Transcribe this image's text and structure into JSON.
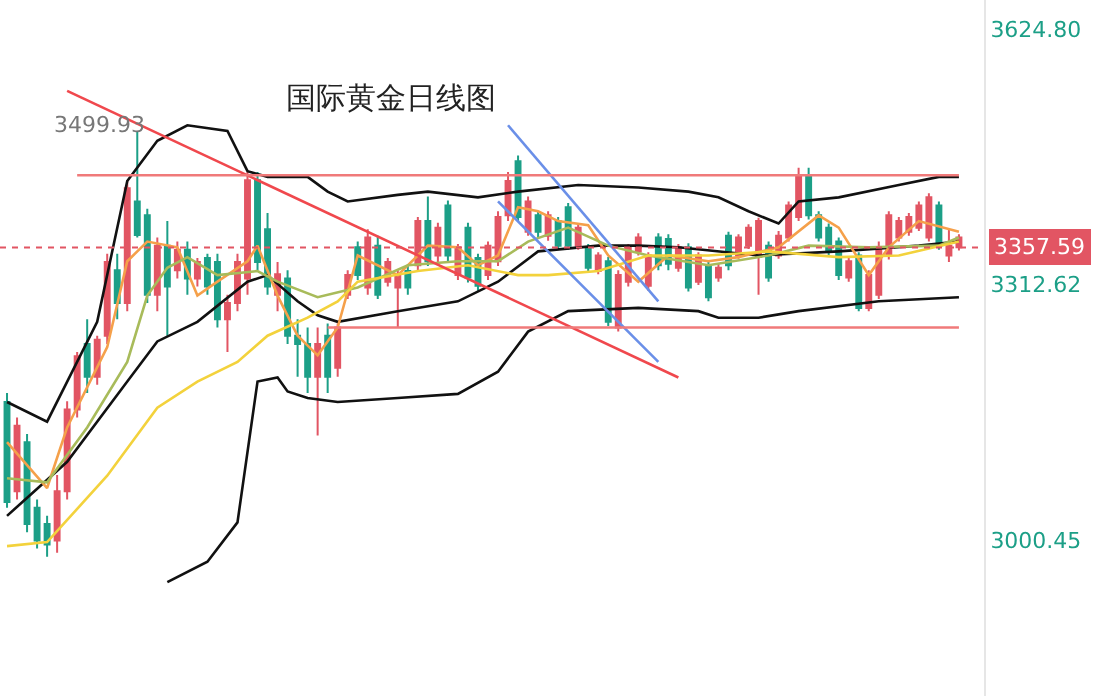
{
  "chart_data": {
    "type": "candlestick",
    "title": "国际黄金日线图",
    "categories": [
      null,
      null,
      null,
      null,
      null,
      null,
      null,
      null,
      null,
      null,
      null,
      null,
      null,
      null,
      null,
      null,
      null,
      null,
      null,
      null,
      null,
      null,
      null,
      null,
      null,
      null,
      null,
      null,
      null,
      null,
      null,
      null,
      null,
      null,
      null,
      null,
      null,
      null,
      null,
      null,
      null,
      null,
      null,
      null,
      null,
      null,
      null,
      null,
      null,
      null,
      null,
      null,
      null,
      null,
      null,
      null,
      null,
      null,
      null,
      null,
      null,
      null,
      null,
      null,
      null,
      null,
      null,
      null,
      null,
      null,
      null,
      null,
      null,
      null,
      null,
      null,
      null,
      null,
      null,
      null,
      null,
      null,
      null,
      null,
      null,
      null,
      null,
      null,
      null,
      null,
      null,
      null,
      null,
      null,
      null,
      null
    ],
    "ohlc": [
      [
        3169,
        3180,
        3040,
        3047
      ],
      [
        3060,
        3150,
        3050,
        3140
      ],
      [
        3120,
        3130,
        3010,
        3020
      ],
      [
        3040,
        3050,
        2990,
        3000
      ],
      [
        3020,
        3030,
        2980,
        2995
      ],
      [
        3000,
        3080,
        2985,
        3060
      ],
      [
        3060,
        3170,
        3050,
        3160
      ],
      [
        3160,
        3230,
        3150,
        3225
      ],
      [
        3240,
        3270,
        3180,
        3200
      ],
      [
        3200,
        3250,
        3190,
        3245
      ],
      [
        3250,
        3350,
        3240,
        3340
      ],
      [
        3330,
        3350,
        3270,
        3290
      ],
      [
        3290,
        3440,
        3280,
        3430
      ],
      [
        3414,
        3499.93,
        3370,
        3373
      ],
      [
        3397,
        3405,
        3290,
        3300
      ],
      [
        3300,
        3370,
        3280,
        3360
      ],
      [
        3360,
        3390,
        3250,
        3310
      ],
      [
        3330,
        3365,
        3320,
        3355
      ],
      [
        3355,
        3365,
        3300,
        3320
      ],
      [
        3320,
        3345,
        3310,
        3340
      ],
      [
        3345,
        3350,
        3300,
        3310
      ],
      [
        3340,
        3350,
        3260,
        3270
      ],
      [
        3270,
        3300,
        3230,
        3290
      ],
      [
        3290,
        3350,
        3280,
        3340
      ],
      [
        3320,
        3450,
        3300,
        3440
      ],
      [
        3440,
        3450,
        3330,
        3340
      ],
      [
        3380,
        3400,
        3300,
        3310
      ],
      [
        3300,
        3340,
        3280,
        3325
      ],
      [
        3320,
        3330,
        3240,
        3250
      ],
      [
        3250,
        3270,
        3200,
        3240
      ],
      [
        3240,
        3260,
        3180,
        3200
      ],
      [
        3200,
        3260,
        3128,
        3240
      ],
      [
        3250,
        3265,
        3180,
        3200
      ],
      [
        3211,
        3265,
        3200,
        3260
      ],
      [
        3300,
        3330,
        3295,
        3324
      ],
      [
        3358,
        3365,
        3318,
        3324
      ],
      [
        3309,
        3380,
        3300,
        3370
      ],
      [
        3360,
        3372,
        3295,
        3300
      ],
      [
        3316,
        3345,
        3310,
        3340
      ],
      [
        3309,
        3330,
        3260,
        3324
      ],
      [
        3329,
        3335,
        3300,
        3309
      ],
      [
        3336,
        3395,
        3330,
        3390
      ],
      [
        3390,
        3420,
        3335,
        3341
      ],
      [
        3348,
        3388,
        3340,
        3382
      ],
      [
        3409,
        3415,
        3340,
        3348
      ],
      [
        3324,
        3362,
        3318,
        3358
      ],
      [
        3382,
        3388,
        3315,
        3321
      ],
      [
        3345,
        3350,
        3305,
        3311
      ],
      [
        3324,
        3365,
        3318,
        3360
      ],
      [
        3341,
        3402,
        3335,
        3395
      ],
      [
        3397,
        3450,
        3390,
        3439
      ],
      [
        3463,
        3470,
        3390,
        3395
      ],
      [
        3377,
        3420,
        3372,
        3414
      ],
      [
        3397,
        3402,
        3370,
        3377
      ],
      [
        3372,
        3402,
        3366,
        3397
      ],
      [
        3390,
        3395,
        3355,
        3360
      ],
      [
        3407,
        3412,
        3355,
        3360
      ],
      [
        3360,
        3386,
        3355,
        3382
      ],
      [
        3358,
        3362,
        3328,
        3333
      ],
      [
        3329,
        3352,
        3325,
        3348
      ],
      [
        3341,
        3346,
        3262,
        3267
      ],
      [
        3260,
        3330,
        3255,
        3324
      ],
      [
        3316,
        3362,
        3310,
        3358
      ],
      [
        3353,
        3375,
        3348,
        3370
      ],
      [
        3311,
        3352,
        3305,
        3348
      ],
      [
        3370,
        3375,
        3330,
        3336
      ],
      [
        3368,
        3374,
        3330,
        3338
      ],
      [
        3333,
        3362,
        3328,
        3358
      ],
      [
        3358,
        3363,
        3304,
        3309
      ],
      [
        3316,
        3352,
        3312,
        3348
      ],
      [
        3336,
        3340,
        3292,
        3297
      ],
      [
        3321,
        3338,
        3316,
        3333
      ],
      [
        3372,
        3377,
        3330,
        3336
      ],
      [
        3348,
        3374,
        3344,
        3370
      ],
      [
        3360,
        3386,
        3356,
        3382
      ],
      [
        3346,
        3394,
        3300,
        3390
      ],
      [
        3360,
        3365,
        3316,
        3321
      ],
      [
        3348,
        3378,
        3344,
        3372
      ],
      [
        3370,
        3414,
        3365,
        3409
      ],
      [
        3395,
        3455,
        3390,
        3446
      ],
      [
        3446,
        3455,
        3392,
        3397
      ],
      [
        3397,
        3402,
        3365,
        3370
      ],
      [
        3382,
        3387,
        3348,
        3353
      ],
      [
        3365,
        3370,
        3318,
        3324
      ],
      [
        3321,
        3346,
        3316,
        3341
      ],
      [
        3348,
        3352,
        3280,
        3284
      ],
      [
        3284,
        3330,
        3280,
        3324
      ],
      [
        3300,
        3365,
        3295,
        3358
      ],
      [
        3348,
        3402,
        3343,
        3397
      ],
      [
        3370,
        3395,
        3365,
        3390
      ],
      [
        3377,
        3400,
        3372,
        3395
      ],
      [
        3382,
        3414,
        3378,
        3409
      ],
      [
        3370,
        3424,
        3365,
        3419
      ],
      [
        3409,
        3414,
        3355,
        3360
      ],
      [
        3348,
        3380,
        3340,
        3360
      ],
      [
        3358,
        3374,
        3354,
        3370
      ]
    ],
    "colors": [
      "#1c9f87",
      "#e25563",
      "#1c9f87",
      "#1c9f87",
      "#1c9f87",
      "#e25563",
      "#e25563",
      "#e25563",
      "#1c9f87",
      "#e25563",
      "#e25563",
      "#1c9f87",
      "#e25563",
      "#1c9f87",
      "#1c9f87",
      "#e25563",
      "#1c9f87",
      "#e25563",
      "#1c9f87",
      "#e25563",
      "#1c9f87",
      "#1c9f87",
      "#e25563",
      "#e25563",
      "#e25563",
      "#1c9f87",
      "#1c9f87",
      "#e25563",
      "#1c9f87",
      "#1c9f87",
      "#1c9f87",
      "#e25563",
      "#1c9f87",
      "#e25563",
      "#e25563",
      "#1c9f87",
      "#e25563",
      "#1c9f87",
      "#e25563",
      "#e25563",
      "#1c9f87",
      "#e25563",
      "#1c9f87",
      "#e25563",
      "#1c9f87",
      "#e25563",
      "#1c9f87",
      "#1c9f87",
      "#e25563",
      "#e25563",
      "#e25563",
      "#1c9f87",
      "#e25563",
      "#1c9f87",
      "#e25563",
      "#1c9f87",
      "#1c9f87",
      "#e25563",
      "#1c9f87",
      "#e25563",
      "#1c9f87",
      "#e25563",
      "#e25563",
      "#e25563",
      "#e25563",
      "#1c9f87",
      "#1c9f87",
      "#e25563",
      "#1c9f87",
      "#e25563",
      "#1c9f87",
      "#e25563",
      "#1c9f87",
      "#e25563",
      "#e25563",
      "#e25563",
      "#1c9f87",
      "#e25563",
      "#e25563",
      "#e25563",
      "#1c9f87",
      "#1c9f87",
      "#1c9f87",
      "#1c9f87",
      "#e25563",
      "#1c9f87",
      "#e25563",
      "#e25563",
      "#e25563",
      "#e25563",
      "#e25563",
      "#e25563",
      "#e25563",
      "#1c9f87",
      "#e25563",
      "#e25563"
    ],
    "series": [
      {
        "type": "line",
        "color": "#111111",
        "values": [
          3169,
          null,
          null,
          null,
          3145,
          null,
          null,
          null,
          null,
          3267,
          null,
          null,
          3439,
          null,
          null,
          3488,
          null,
          null,
          3507,
          null,
          null,
          null,
          3500,
          null,
          3451,
          null,
          3444,
          null,
          null,
          null,
          3444,
          null,
          3426,
          null,
          3414,
          null,
          null,
          null,
          null,
          3422,
          null,
          null,
          3426,
          null,
          null,
          null,
          null,
          3419,
          null,
          null,
          null,
          3426,
          null,
          null,
          null,
          null,
          null,
          3434,
          null,
          null,
          null,
          null,
          null,
          3431,
          null,
          null,
          null,
          null,
          3426,
          null,
          null,
          3419,
          null,
          null,
          3402,
          null,
          null,
          3387,
          null,
          3414,
          null,
          null,
          null,
          3419,
          null,
          null,
          null,
          null,
          null,
          3434,
          null,
          null,
          null,
          3444,
          null,
          3444
        ]
      },
      {
        "type": "line",
        "color": "#111111",
        "values": [
          3030,
          null,
          null,
          null,
          null,
          null,
          3096,
          null,
          null,
          null,
          null,
          null,
          3194,
          null,
          null,
          3243,
          null,
          null,
          null,
          3267,
          null,
          null,
          null,
          null,
          3316,
          null,
          3324,
          null,
          null,
          3292,
          null,
          3275,
          null,
          3267,
          null,
          null,
          null,
          null,
          null,
          3280,
          null,
          null,
          null,
          null,
          null,
          3292,
          null,
          null,
          null,
          3316,
          null,
          null,
          null,
          3353,
          null,
          null,
          null,
          null,
          null,
          3360,
          null,
          null,
          null,
          3360,
          null,
          null,
          null,
          3358,
          null,
          null,
          null,
          null,
          null,
          null,
          null,
          3348,
          null,
          null,
          null,
          null,
          null,
          null,
          null,
          3353,
          null,
          null,
          null,
          null,
          null,
          null,
          null,
          3360,
          null,
          null,
          null,
          3365
        ]
      },
      {
        "type": "line",
        "color": "#111111",
        "values": [
          null,
          null,
          null,
          null,
          null,
          null,
          null,
          null,
          null,
          null,
          null,
          null,
          null,
          null,
          null,
          null,
          2949,
          null,
          null,
          null,
          2974,
          null,
          null,
          3022,
          null,
          3194,
          null,
          3199,
          3182,
          null,
          3174,
          null,
          null,
          3169,
          null,
          null,
          null,
          null,
          null,
          3174,
          null,
          null,
          null,
          null,
          null,
          3179,
          null,
          null,
          null,
          3206,
          null,
          null,
          3255,
          null,
          null,
          null,
          3280,
          null,
          null,
          null,
          null,
          null,
          null,
          3284,
          null,
          null,
          null,
          null,
          null,
          3280,
          null,
          3272,
          null,
          null,
          null,
          3272,
          null,
          null,
          null,
          3280,
          null,
          null,
          null,
          null,
          null,
          null,
          null,
          3292,
          null,
          null,
          null,
          null,
          null,
          null,
          null,
          3297
        ]
      },
      {
        "type": "line",
        "color": "#f5a04a",
        "values": [
          3120,
          null,
          null,
          null,
          3064,
          null,
          3138,
          null,
          null,
          null,
          3236,
          null,
          3341,
          null,
          3365,
          null,
          null,
          3358,
          null,
          3299,
          null,
          3316,
          null,
          null,
          3341,
          3360,
          null,
          3299,
          null,
          3250,
          null,
          3226,
          null,
          3260,
          null,
          3348,
          null,
          null,
          null,
          3324,
          null,
          null,
          3360,
          null,
          null,
          3358,
          null,
          3336,
          null,
          3348,
          null,
          3407,
          null,
          3402,
          null,
          3390,
          null,
          null,
          3385,
          null,
          3348,
          null,
          null,
          3316,
          null,
          null,
          3348,
          null,
          null,
          null,
          3341,
          null,
          null,
          3346,
          null,
          null,
          null,
          3358,
          null,
          null,
          null,
          3397,
          null,
          3382,
          null,
          null,
          3324,
          null,
          3358,
          null,
          null,
          3390,
          null,
          null,
          null,
          3377
        ]
      },
      {
        "type": "line",
        "color": "#a8bb5a",
        "values": [
          3076,
          null,
          null,
          null,
          3071,
          null,
          null,
          null,
          3138,
          null,
          null,
          null,
          3218,
          null,
          3299,
          null,
          3333,
          null,
          3346,
          null,
          null,
          3324,
          null,
          null,
          null,
          3329,
          null,
          3316,
          null,
          null,
          null,
          3297,
          null,
          null,
          null,
          3309,
          null,
          null,
          null,
          null,
          3336,
          null,
          null,
          null,
          null,
          3341,
          null,
          null,
          null,
          3341,
          null,
          null,
          3365,
          null,
          null,
          null,
          3382,
          null,
          null,
          null,
          3360,
          null,
          null,
          null,
          3348,
          null,
          null,
          null,
          null,
          null,
          3336,
          null,
          null,
          null,
          null,
          null,
          3348,
          null,
          null,
          null,
          3360,
          null,
          null,
          null,
          null,
          null,
          3358,
          null,
          null,
          null,
          null,
          null,
          null,
          3360,
          null,
          3370
        ]
      },
      {
        "type": "line",
        "color": "#f3d23c",
        "values": [
          2993,
          null,
          null,
          null,
          2998,
          null,
          null,
          null,
          null,
          null,
          3079,
          null,
          null,
          null,
          null,
          3162,
          null,
          null,
          null,
          3194,
          null,
          null,
          null,
          3218,
          null,
          null,
          3250,
          null,
          null,
          null,
          3272,
          null,
          null,
          3292,
          null,
          3316,
          null,
          null,
          null,
          null,
          null,
          3329,
          null,
          null,
          null,
          null,
          3336,
          null,
          null,
          null,
          null,
          3324,
          null,
          null,
          3324,
          null,
          null,
          null,
          null,
          3329,
          null,
          null,
          null,
          null,
          3348,
          null,
          null,
          null,
          null,
          null,
          3348,
          null,
          null,
          null,
          null,
          null,
          3353,
          null,
          null,
          null,
          null,
          null,
          null,
          3346,
          null,
          null,
          null,
          null,
          null,
          3348,
          null,
          null,
          null,
          null,
          null,
          3365
        ]
      },
      {
        "type": "line",
        "color": "#f0484d",
        "values": [
          null,
          null,
          null,
          null,
          null,
          null,
          3549,
          null,
          null,
          null,
          null,
          null,
          null,
          null,
          null,
          null,
          null,
          null,
          null,
          null,
          null,
          null,
          null,
          null,
          null,
          null,
          null,
          null,
          null,
          null,
          null,
          null,
          null,
          null,
          null,
          null,
          null,
          null,
          null,
          null,
          null,
          null,
          null,
          null,
          null,
          null,
          null,
          null,
          null,
          null,
          null,
          null,
          null,
          null,
          null,
          null,
          null,
          null,
          null,
          null,
          null,
          null,
          null,
          null,
          null,
          null,
          null,
          3199,
          null,
          null,
          null,
          null,
          null,
          null,
          null,
          null,
          null,
          null,
          null,
          null,
          null,
          null,
          null,
          null,
          null,
          null,
          null,
          null,
          null,
          null,
          null,
          null,
          null,
          null,
          null,
          null
        ]
      },
      {
        "type": "line",
        "color": "#6a8fe8",
        "values": [
          null,
          null,
          null,
          null,
          null,
          null,
          null,
          null,
          null,
          null,
          null,
          null,
          null,
          null,
          null,
          null,
          null,
          null,
          null,
          null,
          null,
          null,
          null,
          null,
          null,
          null,
          null,
          null,
          null,
          null,
          null,
          null,
          null,
          null,
          null,
          null,
          null,
          null,
          null,
          null,
          null,
          null,
          null,
          null,
          null,
          null,
          null,
          null,
          null,
          null,
          3507,
          null,
          null,
          null,
          null,
          null,
          null,
          null,
          null,
          null,
          null,
          null,
          null,
          null,
          null,
          3292,
          null,
          null,
          null,
          null,
          null,
          null,
          null,
          null,
          null,
          null,
          null,
          null,
          null,
          null,
          null,
          null,
          null,
          null,
          null,
          null,
          null,
          null,
          null,
          null,
          null,
          null,
          null,
          null,
          null,
          null
        ]
      },
      {
        "type": "line",
        "color": "#6a8fe8",
        "values": [
          null,
          null,
          null,
          null,
          null,
          null,
          null,
          null,
          null,
          null,
          null,
          null,
          null,
          null,
          null,
          null,
          null,
          null,
          null,
          null,
          null,
          null,
          null,
          null,
          null,
          null,
          null,
          null,
          null,
          null,
          null,
          null,
          null,
          null,
          null,
          null,
          null,
          null,
          null,
          null,
          null,
          null,
          null,
          null,
          null,
          null,
          null,
          null,
          null,
          3414,
          null,
          null,
          null,
          null,
          null,
          null,
          null,
          null,
          null,
          null,
          null,
          null,
          null,
          null,
          null,
          3218,
          null,
          null,
          null,
          null,
          null,
          null,
          null,
          null,
          null,
          null,
          null,
          null,
          null,
          null,
          null,
          null,
          null,
          null,
          null,
          null,
          null,
          null,
          null,
          null,
          null,
          null,
          null,
          null,
          null,
          null
        ]
      },
      {
        "type": "line",
        "color": "#f07a7a",
        "values": [
          null,
          null,
          null,
          null,
          null,
          null,
          null,
          3446,
          null,
          null,
          null,
          null,
          null,
          null,
          null,
          null,
          null,
          null,
          null,
          null,
          null,
          null,
          null,
          null,
          null,
          null,
          null,
          null,
          null,
          null,
          null,
          null,
          null,
          null,
          null,
          null,
          null,
          null,
          null,
          null,
          null,
          null,
          null,
          null,
          null,
          null,
          null,
          null,
          null,
          null,
          null,
          null,
          null,
          null,
          null,
          null,
          null,
          null,
          null,
          null,
          null,
          null,
          null,
          null,
          null,
          null,
          null,
          null,
          null,
          null,
          null,
          null,
          null,
          null,
          null,
          null,
          null,
          null,
          null,
          null,
          null,
          null,
          null,
          null,
          null,
          null,
          null,
          null,
          null,
          null,
          null,
          null,
          null,
          null,
          null,
          3446
        ]
      },
      {
        "type": "line",
        "color": "#f07a7a",
        "values": [
          null,
          null,
          null,
          null,
          null,
          null,
          null,
          null,
          null,
          null,
          null,
          null,
          null,
          null,
          null,
          null,
          null,
          null,
          null,
          null,
          null,
          null,
          null,
          null,
          null,
          null,
          null,
          null,
          null,
          null,
          null,
          null,
          3260,
          null,
          null,
          null,
          null,
          null,
          null,
          null,
          null,
          null,
          null,
          null,
          null,
          null,
          null,
          null,
          null,
          null,
          null,
          null,
          null,
          null,
          null,
          null,
          null,
          null,
          null,
          null,
          null,
          null,
          null,
          null,
          null,
          null,
          null,
          null,
          null,
          null,
          null,
          null,
          null,
          null,
          null,
          null,
          null,
          null,
          null,
          null,
          null,
          null,
          null,
          null,
          null,
          null,
          null,
          null,
          null,
          null,
          null,
          null,
          null,
          null,
          null,
          3260
        ]
      }
    ],
    "ref_lines": [
      {
        "axis": "y",
        "value": 3357.59,
        "label": "3357.59",
        "color": "#e25563",
        "line_style": "dotted"
      }
    ],
    "annotations": [
      "3499.93"
    ],
    "ylim": [
      2810,
      3660
    ],
    "yticks": [
      {
        "value": 3624.8,
        "label": "3624.80"
      },
      3312.62,
      {
        "value": 3000.45,
        "label": "3000.45"
      }
    ],
    "tick_labels": "y"
  }
}
